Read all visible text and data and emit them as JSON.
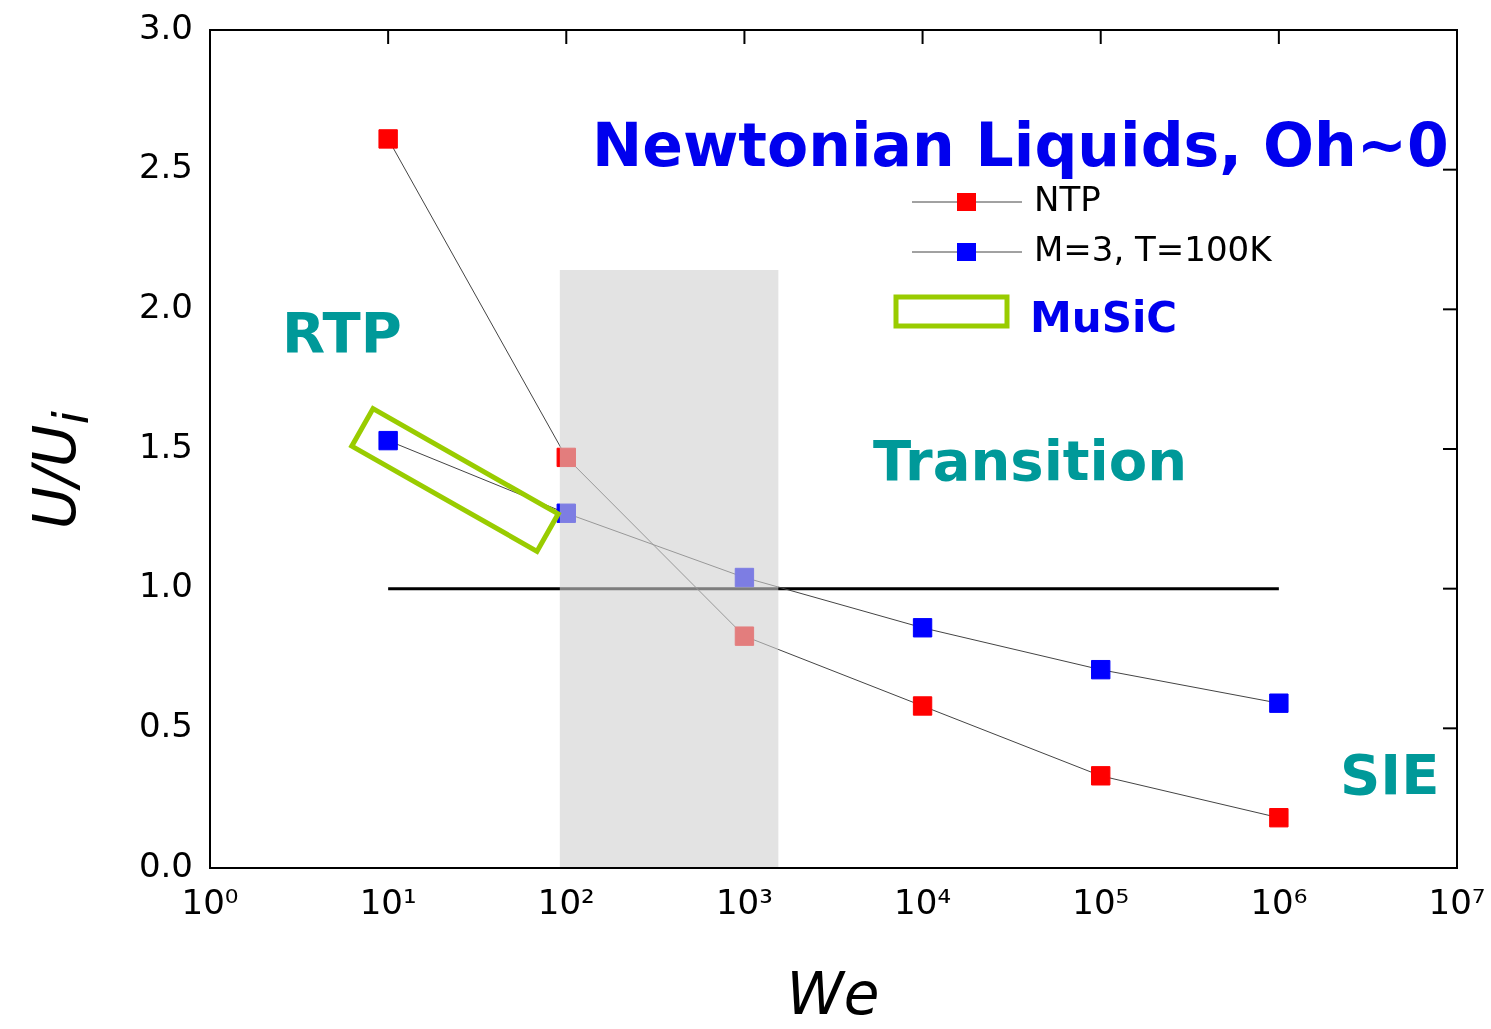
{
  "chart_data": {
    "type": "line",
    "xlabel": "We",
    "ylabel": "U/U$_{i}$",
    "log": "x",
    "x": [
      10,
      100,
      1000,
      10000,
      100000,
      1000000
    ],
    "series": [
      {
        "name": "NTP",
        "color": "#ff0000",
        "values": [
          2.61,
          1.47,
          0.83,
          0.58,
          0.33,
          0.18
        ]
      },
      {
        "name": "M=3, T=100K",
        "color": "#0000ff",
        "values": [
          1.53,
          1.27,
          1.04,
          0.86,
          0.71,
          0.59
        ]
      },
      {
        "x": [
          10,
          1000000
        ],
        "color": "#000000",
        "values": [
          1,
          1
        ],
        "marker": "none"
      }
    ],
    "marker": "square",
    "legend": "top right",
    "bands": [
      {
        "axis": "x",
        "from": 92,
        "to": 1550,
        "color": "#d0d0d0"
      }
    ],
    "xlim": [
      1,
      10000000
    ],
    "xticks": [
      {
        "value": 1,
        "label": "10⁰"
      },
      {
        "value": 10,
        "label": "10¹"
      },
      {
        "value": 100,
        "label": "10²"
      },
      {
        "value": 1000,
        "label": "10³"
      },
      {
        "value": 10000,
        "label": "10⁴"
      },
      {
        "value": 100000,
        "label": "10⁵"
      },
      {
        "value": 1000000,
        "label": "10⁶"
      },
      {
        "value": 10000000,
        "label": "10⁷"
      }
    ],
    "ylim": [
      0,
      3
    ],
    "yticks": [
      {
        "value": 0,
        "label": "0.0"
      },
      0.5,
      {
        "value": 1,
        "label": "1.0"
      },
      1.5,
      {
        "value": 2,
        "label": "2.0"
      },
      2.5,
      {
        "value": 3,
        "label": "3.0"
      }
    ],
    "annotations": [
      "Newtonian Liquids, Oh~0",
      "RTP",
      "Transition",
      "SIE",
      "MuSiC"
    ]
  }
}
